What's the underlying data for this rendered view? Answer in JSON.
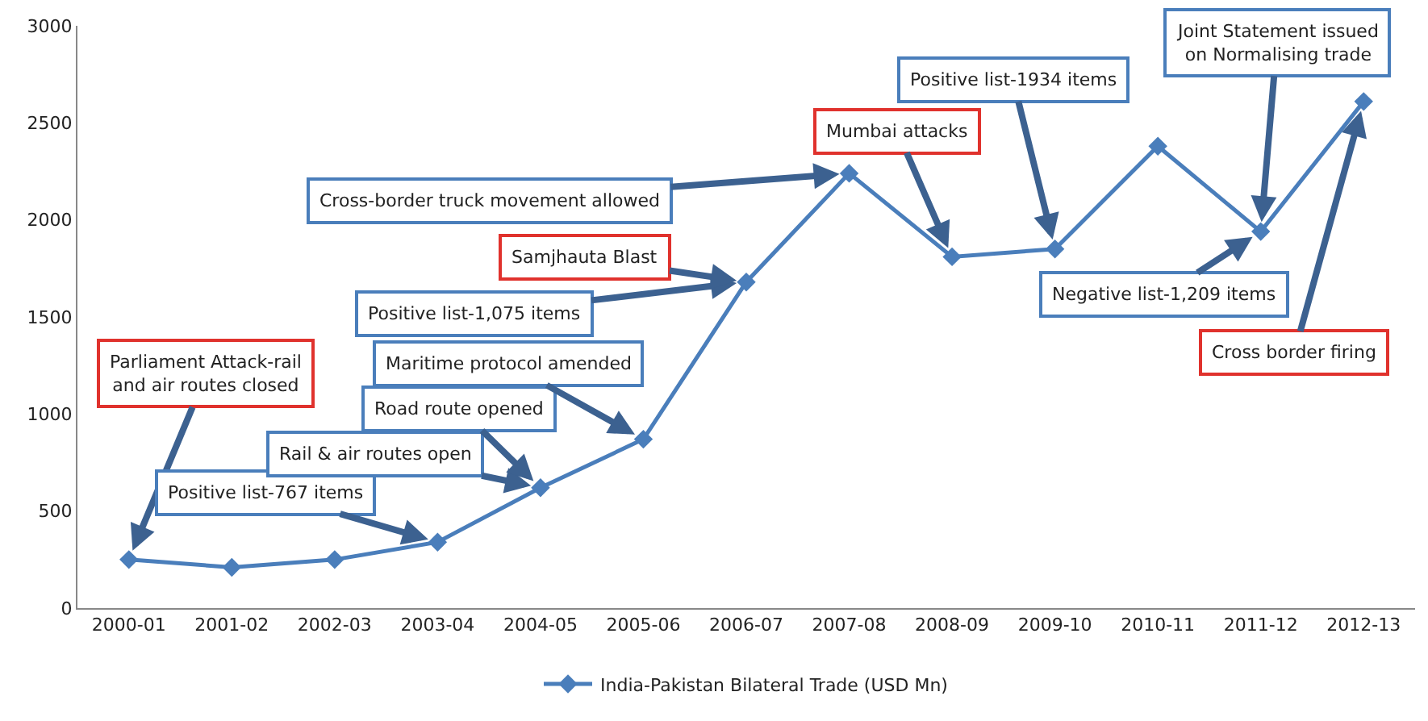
{
  "chart_data": {
    "type": "line",
    "categories": [
      "2000-01",
      "2001-02",
      "2002-03",
      "2003-04",
      "2004-05",
      "2005-06",
      "2006-07",
      "2007-08",
      "2008-09",
      "2009-10",
      "2010-11",
      "2011-12",
      "2012-13"
    ],
    "series": [
      {
        "name": "India-Pakistan Bilateral Trade (USD Mn)",
        "color": "#4a7ebb",
        "values": [
          250,
          210,
          250,
          340,
          620,
          870,
          1680,
          2240,
          1810,
          1850,
          2380,
          1940,
          2610
        ]
      }
    ],
    "ylim": [
      0,
      3000
    ],
    "yticks": [
      0,
      500,
      1000,
      1500,
      2000,
      2500,
      3000
    ],
    "grid": false,
    "legend": "bottom",
    "marker": "diamond",
    "line_style": "solid",
    "annotations": [
      {
        "text": "Parliament Attack-rail\nand air routes closed",
        "x": "2000-01",
        "y": 250
      },
      {
        "text": "Positive list-767 items",
        "x": "2003-04",
        "y": 340
      },
      {
        "text": "Rail & air routes open",
        "x": "2004-05",
        "y": 620
      },
      {
        "text": "Road route opened",
        "x": "2004-05",
        "y": 620
      },
      {
        "text": "Maritime protocol amended",
        "x": "2005-06",
        "y": 870
      },
      {
        "text": "Positive list-1,075 items",
        "x": "2006-07",
        "y": 1680
      },
      {
        "text": "Samjhauta Blast",
        "x": "2006-07",
        "y": 1680
      },
      {
        "text": "Cross-border truck movement allowed",
        "x": "2007-08",
        "y": 2240
      },
      {
        "text": "Mumbai attacks",
        "x": "2008-09",
        "y": 1810
      },
      {
        "text": "Positive list-1934 items",
        "x": "2009-10",
        "y": 1850
      },
      {
        "text": "Joint Statement issued\non Normalising trade",
        "x": "2011-12",
        "y": 1940
      },
      {
        "text": "Negative list-1,209 items",
        "x": "2011-12",
        "y": 1940
      },
      {
        "text": "Cross border firing",
        "x": "2012-13",
        "y": 2610
      }
    ]
  }
}
